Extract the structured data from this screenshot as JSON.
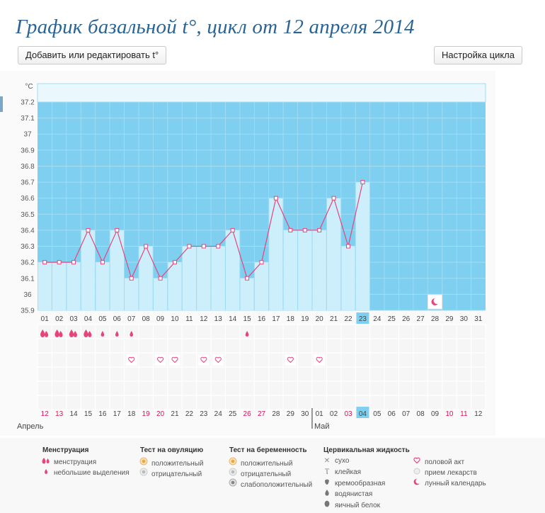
{
  "header": {
    "title": "График базальной t°, цикл от 12 апреля 2014"
  },
  "toolbar": {
    "edit_label": "Добавить или редактировать t°",
    "settings_label": "Настройка цикла"
  },
  "colors": {
    "bg_blue": "#7fcff0",
    "bar": "#cdeefb",
    "line": "#e5457c",
    "today": "#7fcff0",
    "red_date": "#e0114e",
    "pink_icon": "#e5457c"
  },
  "chart_data": {
    "type": "bar",
    "unit_label": "°C",
    "ylim": [
      35.9,
      37.2
    ],
    "yticks": [
      "37.2",
      "37.1",
      "37",
      "36.9",
      "36.8",
      "36.7",
      "36.6",
      "36.5",
      "36.4",
      "36.3",
      "36.2",
      "36.1",
      "36",
      "35.9"
    ],
    "cycle_days": [
      "01",
      "02",
      "03",
      "04",
      "05",
      "06",
      "07",
      "08",
      "09",
      "10",
      "11",
      "12",
      "13",
      "14",
      "15",
      "16",
      "17",
      "18",
      "19",
      "20",
      "21",
      "22",
      "23",
      "24",
      "25",
      "26",
      "27",
      "28",
      "29",
      "30",
      "31"
    ],
    "current_day_index": 22,
    "values": [
      36.2,
      36.2,
      36.2,
      36.4,
      36.2,
      36.4,
      36.1,
      36.3,
      36.1,
      36.2,
      36.3,
      36.3,
      36.3,
      36.4,
      36.1,
      36.2,
      36.6,
      36.4,
      36.4,
      36.4,
      36.6,
      36.3,
      36.7,
      null,
      null,
      null,
      null,
      null,
      null,
      null,
      null
    ],
    "menstruation": [
      "heavy",
      "heavy",
      "heavy",
      "heavy",
      "light",
      "light",
      "light",
      null,
      null,
      null,
      null,
      null,
      null,
      null,
      "light",
      null,
      null,
      null,
      null,
      null,
      null,
      null,
      null,
      null,
      null,
      null,
      null,
      null,
      null,
      null,
      null
    ],
    "intercourse": [
      false,
      false,
      false,
      false,
      false,
      false,
      true,
      false,
      true,
      true,
      false,
      true,
      true,
      false,
      false,
      false,
      false,
      true,
      false,
      true,
      false,
      false,
      false,
      false,
      false,
      false,
      false,
      false,
      false,
      false,
      false
    ],
    "moon_day_index": 27,
    "dates": [
      "12",
      "13",
      "14",
      "15",
      "16",
      "17",
      "18",
      "19",
      "20",
      "21",
      "22",
      "23",
      "24",
      "25",
      "26",
      "27",
      "28",
      "29",
      "30",
      "01",
      "02",
      "03",
      "04",
      "05",
      "06",
      "07",
      "08",
      "09",
      "10",
      "11",
      "12"
    ],
    "red_dates": [
      true,
      true,
      false,
      false,
      false,
      false,
      false,
      true,
      true,
      false,
      false,
      false,
      false,
      false,
      true,
      true,
      false,
      false,
      false,
      false,
      false,
      true,
      false,
      false,
      false,
      false,
      false,
      false,
      true,
      true,
      false
    ],
    "months": [
      {
        "label": "Апрель",
        "start_index": 0
      },
      {
        "label": "Май",
        "start_index": 19
      }
    ]
  },
  "legend": {
    "groups": [
      {
        "title": "Менструация",
        "items": [
          {
            "icon": "heavy-drop-icon",
            "label": "менструация"
          },
          {
            "icon": "light-drop-icon",
            "label": "небольшие выделения"
          }
        ]
      },
      {
        "title": "Тест на овуляцию",
        "items": [
          {
            "icon": "positive-dot-icon",
            "label": "положительный"
          },
          {
            "icon": "negative-dot-icon",
            "label": "отрицательный"
          }
        ]
      },
      {
        "title": "Тест на беременность",
        "items": [
          {
            "icon": "positive-dot-icon",
            "label": "положительный"
          },
          {
            "icon": "negative-dot-icon",
            "label": "отрицательный"
          },
          {
            "icon": "weak-dot-icon",
            "label": "слабоположительный"
          }
        ]
      },
      {
        "title": "Цервикальная жидкость",
        "items": [
          {
            "icon": "cross-icon",
            "label": "сухо"
          },
          {
            "icon": "sticky-icon",
            "label": "клейкая"
          },
          {
            "icon": "creamy-icon",
            "label": "кремообразная"
          },
          {
            "icon": "watery-icon",
            "label": "водянистая"
          },
          {
            "icon": "eggwhite-icon",
            "label": "яичный белок"
          }
        ]
      },
      {
        "title": "",
        "items": [
          {
            "icon": "heart-icon",
            "label": "половой акт"
          },
          {
            "icon": "pill-icon",
            "label": "прием лекарств"
          },
          {
            "icon": "moon-icon",
            "label": "лунный календарь"
          }
        ]
      }
    ]
  }
}
